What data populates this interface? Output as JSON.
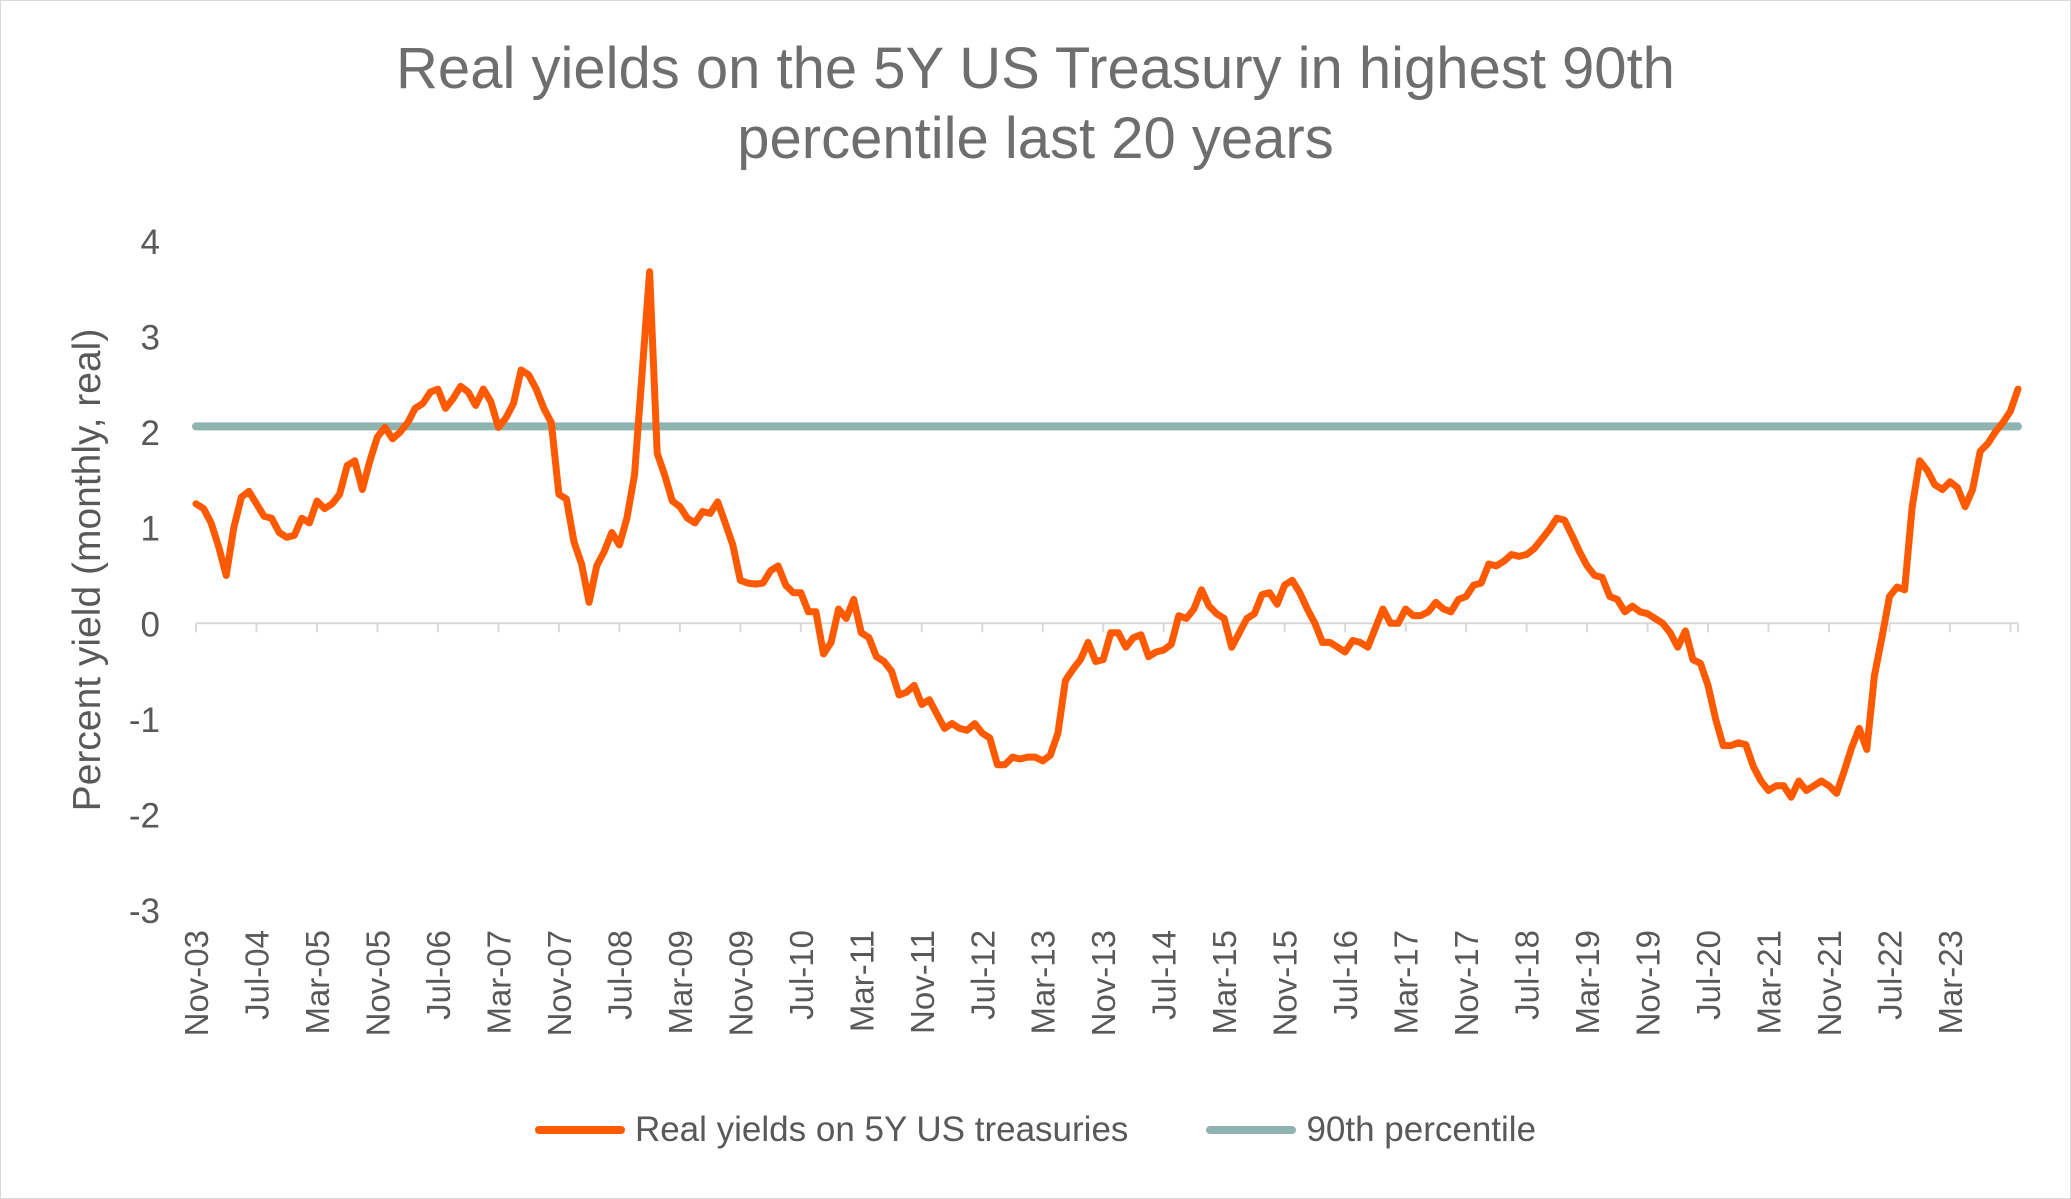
{
  "chart_data": {
    "type": "line",
    "title_lines": [
      "Real yields on the 5Y US Treasury in highest 90th",
      "percentile last 20 years"
    ],
    "xlabel": "",
    "ylabel": "Percent yield (monthly, real)",
    "ylim": [
      -3,
      4
    ],
    "yticks": [
      "4",
      "3",
      "2",
      "1",
      "0",
      "-1",
      "-2",
      "-3"
    ],
    "xticks": [
      "Nov-03",
      "Jul-04",
      "Mar-05",
      "Nov-05",
      "Jul-06",
      "Mar-07",
      "Nov-07",
      "Jul-08",
      "Mar-09",
      "Nov-09",
      "Jul-10",
      "Mar-11",
      "Nov-11",
      "Jul-12",
      "Mar-13",
      "Nov-13",
      "Jul-14",
      "Mar-15",
      "Nov-15",
      "Jul-16",
      "Mar-17",
      "Nov-17",
      "Jul-18",
      "Mar-19",
      "Nov-19",
      "Jul-20",
      "Mar-21",
      "Nov-21",
      "Jul-22",
      "Mar-23"
    ],
    "x_start": "Nov-03",
    "x_end": "Dec-23",
    "legend_position": "bottom",
    "grid": false,
    "series": [
      {
        "name": "Real yields on 5Y US treasuries",
        "color": "#ff5a00",
        "values": [
          1.25,
          1.2,
          1.05,
          0.8,
          0.5,
          1.0,
          1.32,
          1.38,
          1.25,
          1.12,
          1.1,
          0.95,
          0.9,
          0.92,
          1.1,
          1.05,
          1.28,
          1.2,
          1.25,
          1.35,
          1.65,
          1.7,
          1.4,
          1.7,
          1.95,
          2.05,
          1.93,
          2.0,
          2.1,
          2.25,
          2.3,
          2.42,
          2.45,
          2.25,
          2.35,
          2.48,
          2.42,
          2.28,
          2.45,
          2.32,
          2.05,
          2.15,
          2.3,
          2.65,
          2.6,
          2.45,
          2.25,
          2.1,
          1.35,
          1.3,
          0.85,
          0.62,
          0.22,
          0.6,
          0.75,
          0.95,
          0.82,
          1.1,
          1.55,
          2.6,
          3.68,
          1.78,
          1.55,
          1.28,
          1.22,
          1.1,
          1.05,
          1.17,
          1.15,
          1.27,
          1.05,
          0.82,
          0.45,
          0.42,
          0.41,
          0.42,
          0.55,
          0.6,
          0.4,
          0.32,
          0.32,
          0.12,
          0.12,
          -0.32,
          -0.2,
          0.15,
          0.05,
          0.25,
          -0.1,
          -0.15,
          -0.35,
          -0.4,
          -0.5,
          -0.75,
          -0.72,
          -0.65,
          -0.85,
          -0.8,
          -0.95,
          -1.1,
          -1.05,
          -1.1,
          -1.12,
          -1.05,
          -1.15,
          -1.2,
          -1.48,
          -1.48,
          -1.4,
          -1.42,
          -1.4,
          -1.4,
          -1.44,
          -1.38,
          -1.15,
          -0.6,
          -0.48,
          -0.38,
          -0.2,
          -0.4,
          -0.38,
          -0.1,
          -0.1,
          -0.25,
          -0.15,
          -0.12,
          -0.35,
          -0.3,
          -0.28,
          -0.22,
          0.08,
          0.05,
          0.15,
          0.35,
          0.18,
          0.1,
          0.05,
          -0.25,
          -0.1,
          0.05,
          0.1,
          0.3,
          0.32,
          0.2,
          0.4,
          0.45,
          0.32,
          0.15,
          0.0,
          -0.2,
          -0.2,
          -0.25,
          -0.3,
          -0.18,
          -0.2,
          -0.25,
          -0.05,
          0.15,
          0.0,
          0.0,
          0.15,
          0.08,
          0.08,
          0.12,
          0.22,
          0.15,
          0.12,
          0.25,
          0.28,
          0.4,
          0.42,
          0.62,
          0.6,
          0.65,
          0.72,
          0.7,
          0.72,
          0.78,
          0.88,
          0.98,
          1.1,
          1.08,
          0.92,
          0.75,
          0.6,
          0.5,
          0.48,
          0.28,
          0.25,
          0.12,
          0.18,
          0.12,
          0.1,
          0.05,
          0.0,
          -0.1,
          -0.25,
          -0.08,
          -0.38,
          -0.42,
          -0.65,
          -1.0,
          -1.28,
          -1.28,
          -1.25,
          -1.27,
          -1.5,
          -1.65,
          -1.75,
          -1.7,
          -1.7,
          -1.82,
          -1.65,
          -1.75,
          -1.7,
          -1.65,
          -1.7,
          -1.78,
          -1.55,
          -1.3,
          -1.1,
          -1.32,
          -0.55,
          -0.15,
          0.28,
          0.38,
          0.35,
          1.22,
          1.7,
          1.6,
          1.45,
          1.4,
          1.48,
          1.42,
          1.22,
          1.4,
          1.8,
          1.88,
          2.0,
          2.1,
          2.22,
          2.45
        ]
      },
      {
        "name": "90th percentile",
        "color": "#8fb3b0",
        "constant": 2.06
      }
    ]
  }
}
